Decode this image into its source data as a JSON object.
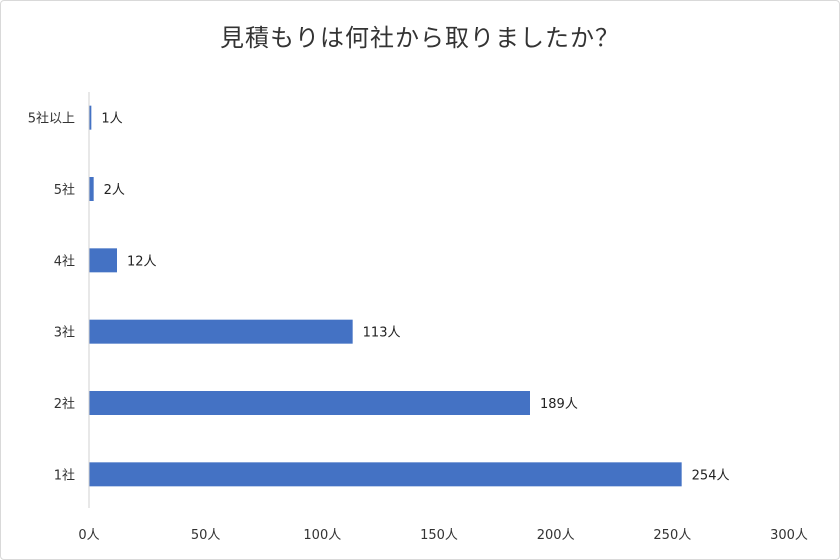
{
  "chart_data": {
    "type": "bar",
    "orientation": "horizontal",
    "title": "見積もりは何社から取りましたか？",
    "xlabel": "",
    "ylabel": "",
    "categories": [
      "5社以上",
      "5社",
      "4社",
      "3社",
      "2社",
      "1社"
    ],
    "values": [
      1,
      2,
      12,
      113,
      189,
      254
    ],
    "data_labels": [
      "1人",
      "2人",
      "12人",
      "113人",
      "189人",
      "254人"
    ],
    "xlim": [
      0,
      300
    ],
    "x_ticks": [
      0,
      50,
      100,
      150,
      200,
      250,
      300
    ],
    "x_tick_labels": [
      "0人",
      "50人",
      "100人",
      "150人",
      "200人",
      "250人",
      "300人"
    ],
    "grid": false,
    "legend": "none",
    "bar_color": "#4472c4"
  }
}
